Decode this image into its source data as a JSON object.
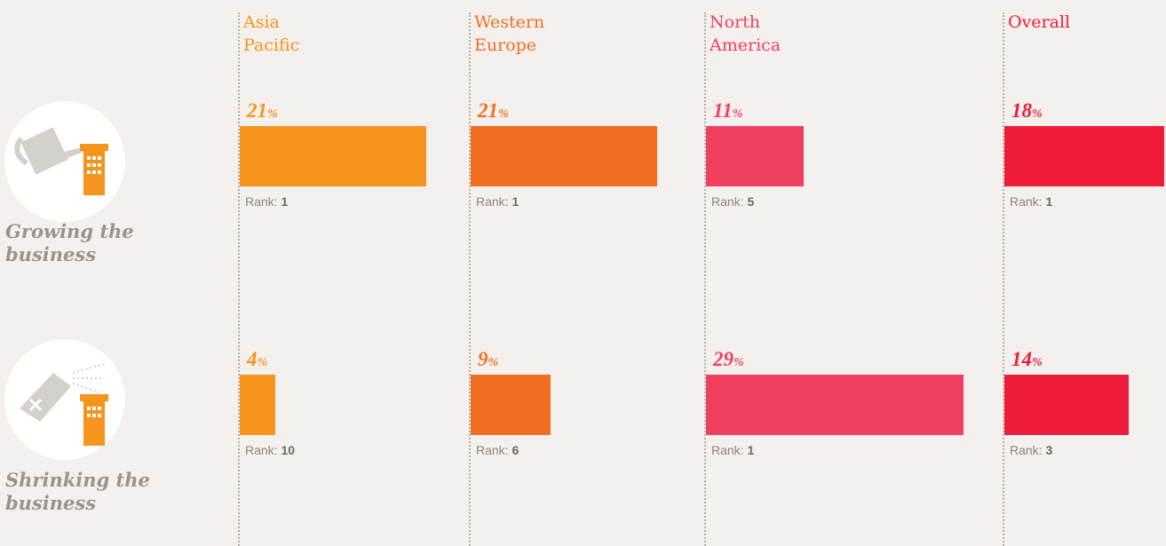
{
  "chart_data": {
    "type": "bar",
    "categories": [
      "Growing the business",
      "Shrinking the business"
    ],
    "rank_label": "Rank:",
    "series": [
      {
        "name": "Asia Pacific",
        "color": "#f7941d",
        "values": [
          21,
          4
        ],
        "value_labels": [
          "21%",
          "4%"
        ],
        "ranks": [
          1,
          10
        ]
      },
      {
        "name": "Western Europe",
        "color": "#f26f21",
        "values": [
          21,
          9
        ],
        "value_labels": [
          "21%",
          "9%"
        ],
        "ranks": [
          1,
          6
        ]
      },
      {
        "name": "North America",
        "color": "#f03f5f",
        "values": [
          11,
          29
        ],
        "value_labels": [
          "11%",
          "29%"
        ],
        "ranks": [
          5,
          1
        ]
      },
      {
        "name": "Overall",
        "color": "#ee1c3a",
        "values": [
          18,
          14
        ],
        "value_labels": [
          "18%",
          "14%"
        ],
        "ranks": [
          1,
          3
        ]
      }
    ]
  }
}
